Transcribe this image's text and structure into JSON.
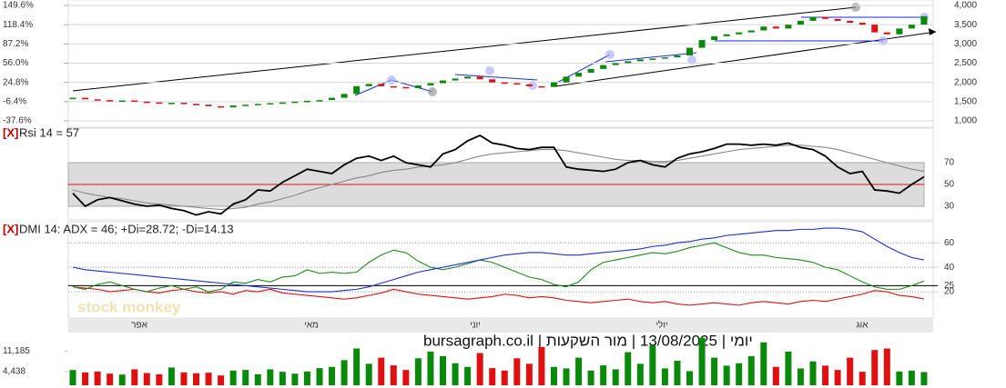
{
  "chart_data": [
    {
      "type": "candlestick",
      "up_color": "#0a8a0a",
      "down_color": "#e01010",
      "open": [
        1580,
        1600,
        1560,
        1540,
        1520,
        1530,
        1500,
        1480,
        1450,
        1470,
        1440,
        1420,
        1380,
        1350,
        1400,
        1420,
        1440,
        1460,
        1480,
        1500,
        1520,
        1540,
        1600,
        1700,
        1900,
        1960,
        1900,
        1880,
        1850,
        1920,
        1980,
        2050,
        2100,
        2150,
        2080,
        2000,
        1980,
        1950,
        1900,
        1880,
        2000,
        2150,
        2250,
        2350,
        2450,
        2500,
        2550,
        2600,
        2620,
        2650,
        2700,
        2900,
        3100,
        3200,
        3250,
        3300,
        3350,
        3450,
        3400,
        3500,
        3600,
        3700,
        3650,
        3600,
        3550,
        3500,
        3300,
        3250,
        3400,
        3500
      ],
      "close": [
        1600,
        1560,
        1540,
        1520,
        1530,
        1500,
        1480,
        1450,
        1470,
        1440,
        1420,
        1380,
        1350,
        1400,
        1420,
        1440,
        1460,
        1480,
        1500,
        1520,
        1540,
        1600,
        1700,
        1900,
        1960,
        1900,
        1880,
        1850,
        1920,
        1980,
        2050,
        2100,
        2150,
        2080,
        2000,
        1980,
        1950,
        1900,
        1880,
        2000,
        2150,
        2250,
        2350,
        2450,
        2500,
        2550,
        2600,
        2620,
        2650,
        2700,
        2900,
        3100,
        3200,
        3250,
        3300,
        3350,
        3450,
        3400,
        3500,
        3600,
        3700,
        3650,
        3600,
        3550,
        3500,
        3300,
        3250,
        3400,
        3500,
        3720
      ],
      "ylim": [
        1000,
        4000
      ],
      "yticks": [
        {
          "value": 1000,
          "label": "1,000"
        },
        {
          "value": 1500,
          "label": "1,500"
        },
        {
          "value": 2000,
          "label": "2,000"
        },
        {
          "value": 2500,
          "label": "2,500"
        },
        {
          "value": 3000,
          "label": "3,000"
        },
        {
          "value": 3500,
          "label": "3,500"
        },
        {
          "value": 4000,
          "label": "4,000"
        }
      ],
      "y2lim": [
        -37.6,
        149.6
      ],
      "y2ticks": [
        {
          "value": -37.6,
          "label": "-37.6%"
        },
        {
          "value": -6.4,
          "label": "-6.4%"
        },
        {
          "value": 24.8,
          "label": "24.8%"
        },
        {
          "value": 56.0,
          "label": "56.0%"
        },
        {
          "value": 87.2,
          "label": "87.2%"
        },
        {
          "value": 118.4,
          "label": "118.4%"
        },
        {
          "value": 149.6,
          "label": "149.6%"
        }
      ],
      "grid": true
    },
    {
      "type": "line",
      "close_button": "[X]",
      "title": "Rsi 14 = 57",
      "series": [
        {
          "name": "Rsi 14",
          "color": "#000000",
          "values": [
            42,
            30,
            36,
            38,
            35,
            32,
            30,
            31,
            28,
            26,
            22,
            25,
            23,
            32,
            36,
            45,
            44,
            52,
            58,
            64,
            62,
            60,
            68,
            74,
            76,
            72,
            76,
            70,
            68,
            66,
            78,
            82,
            90,
            95,
            88,
            86,
            83,
            82,
            84,
            84,
            66,
            64,
            63,
            62,
            64,
            70,
            72,
            68,
            66,
            74,
            78,
            80,
            83,
            87,
            87,
            86,
            87,
            86,
            88,
            84,
            82,
            76,
            66,
            60,
            62,
            45,
            44,
            42,
            50,
            57
          ]
        },
        {
          "name": "MA",
          "color": "#888888",
          "values": [
            45,
            42,
            40,
            38,
            37,
            35,
            33,
            32,
            31,
            30,
            29,
            28,
            27,
            28,
            29,
            32,
            34,
            37,
            40,
            44,
            47,
            50,
            53,
            56,
            58,
            61,
            63,
            64,
            66,
            67,
            68,
            70,
            73,
            76,
            78,
            79,
            80,
            81,
            82,
            82,
            81,
            79,
            77,
            75,
            73,
            72,
            72,
            71,
            71,
            72,
            74,
            76,
            78,
            80,
            82,
            83,
            84,
            85,
            86,
            86,
            85,
            84,
            82,
            79,
            76,
            73,
            70,
            67,
            64,
            62
          ]
        }
      ],
      "band": [
        30,
        70
      ],
      "midline": 50,
      "ylim": [
        20,
        100
      ],
      "yticks": [
        30,
        50,
        70
      ]
    },
    {
      "type": "line",
      "close_button": "[X]",
      "title": "DMI 14: ADX = 46; +Di=28.72; -Di=14.13",
      "series": [
        {
          "name": "ADX",
          "color": "#1a2ee0",
          "values": [
            40,
            38,
            37,
            36,
            35,
            34,
            33,
            32,
            31,
            30,
            29,
            28,
            27,
            26,
            25,
            24,
            23,
            22,
            21,
            20,
            20,
            20,
            21,
            22,
            24,
            27,
            30,
            33,
            36,
            38,
            40,
            42,
            44,
            46,
            48,
            50,
            51,
            52,
            52,
            51,
            50,
            50,
            51,
            52,
            53,
            54,
            55,
            57,
            58,
            60,
            61,
            63,
            64,
            66,
            67,
            68,
            69,
            70,
            70,
            71,
            71,
            72,
            72,
            71,
            69,
            63,
            57,
            52,
            48,
            46
          ]
        },
        {
          "name": "+Di",
          "color": "#1a8a1a",
          "values": [
            24,
            22,
            26,
            28,
            25,
            22,
            20,
            23,
            25,
            22,
            24,
            20,
            22,
            28,
            27,
            30,
            28,
            32,
            33,
            38,
            35,
            36,
            35,
            36,
            44,
            50,
            54,
            52,
            45,
            40,
            38,
            40,
            43,
            46,
            44,
            40,
            36,
            32,
            30,
            26,
            24,
            28,
            38,
            44,
            46,
            48,
            50,
            52,
            51,
            53,
            56,
            58,
            60,
            56,
            52,
            50,
            50,
            48,
            47,
            46,
            44,
            40,
            38,
            33,
            28,
            24,
            22,
            22,
            25,
            28.72
          ]
        },
        {
          "name": "-Di",
          "color": "#e01010",
          "values": [
            24,
            23,
            22,
            20,
            21,
            22,
            20,
            19,
            21,
            22,
            20,
            19,
            20,
            18,
            21,
            20,
            22,
            19,
            18,
            17,
            16,
            15,
            14,
            15,
            17,
            19,
            22,
            20,
            18,
            17,
            16,
            15,
            14,
            15,
            16,
            18,
            17,
            15,
            16,
            15,
            13,
            12,
            11,
            12,
            13,
            14,
            12,
            11,
            12,
            10,
            9,
            10,
            11,
            10,
            9,
            11,
            12,
            11,
            10,
            12,
            13,
            12,
            14,
            16,
            18,
            21,
            20,
            17,
            16,
            14.13
          ]
        }
      ],
      "refline": 25,
      "ylim": [
        0,
        75
      ],
      "yticks": [
        20,
        25,
        40,
        60
      ]
    },
    {
      "type": "bar",
      "values": [
        5000,
        4200,
        4500,
        3800,
        3500,
        5200,
        4000,
        3600,
        5800,
        4200,
        3900,
        4100,
        3200,
        4800,
        5000,
        3600,
        5200,
        4400,
        3800,
        4500,
        5600,
        6000,
        8200,
        12000,
        7000,
        9000,
        6500,
        5000,
        8800,
        11000,
        9500,
        7200,
        6000,
        10500,
        5600,
        4800,
        8800,
        7000,
        12500,
        6000,
        5500,
        9000,
        4800,
        6500,
        5200,
        10800,
        7000,
        13000,
        5500,
        8000,
        4600,
        15500,
        9000,
        6400,
        7200,
        9500,
        14000,
        6000,
        11000,
        5500,
        7800,
        6400,
        5000,
        9000,
        4400,
        11500,
        12000,
        4500,
        4800,
        4300
      ],
      "ylim": [
        0,
        16000
      ],
      "yticks": [
        {
          "value": 4438,
          "label": "4,438"
        },
        {
          "value": 11185,
          "label": "11,185"
        }
      ]
    }
  ],
  "x_axis": {
    "labels": [
      "אפר",
      "מאי",
      "יוני",
      "יולי",
      "אוג"
    ]
  },
  "watermark": "stock monkey",
  "footer": "יומי | 13/08/2025 | מור השקעות | bursagraph.co.il"
}
